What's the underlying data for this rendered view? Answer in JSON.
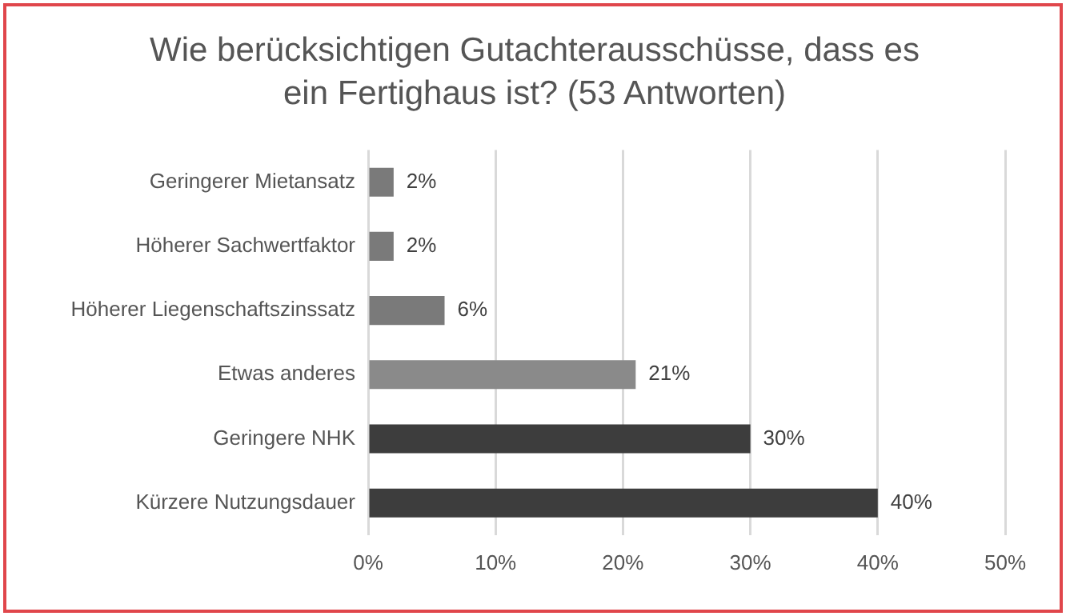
{
  "chart_data": {
    "type": "bar",
    "orientation": "horizontal",
    "title": "Wie berücksichtigen Gutachterausschüsse, dass es ein Fertighaus ist? (53 Antworten)",
    "categories": [
      "Geringerer Mietansatz",
      "Höherer Sachwertfaktor",
      "Höherer Liegenschaftszinssatz",
      "Etwas anderes",
      "Geringere NHK",
      "Kürzere Nutzungsdauer"
    ],
    "values": [
      2,
      2,
      6,
      21,
      30,
      40
    ],
    "colors": [
      "#7a7a7a",
      "#7a7a7a",
      "#7a7a7a",
      "#8a8a8a",
      "#3d3d3d",
      "#3d3d3d"
    ],
    "value_labels": [
      "2%",
      "2%",
      "6%",
      "21%",
      "30%",
      "40%"
    ],
    "xlim": [
      0,
      50
    ],
    "xticks": [
      {
        "value": 0,
        "label": "0%"
      },
      {
        "value": 10,
        "label": "10%"
      },
      {
        "value": 20,
        "label": "20%"
      },
      {
        "value": 30,
        "label": "30%"
      },
      {
        "value": 40,
        "label": "40%"
      },
      {
        "value": 50,
        "label": "50%"
      }
    ],
    "grid": "x"
  }
}
